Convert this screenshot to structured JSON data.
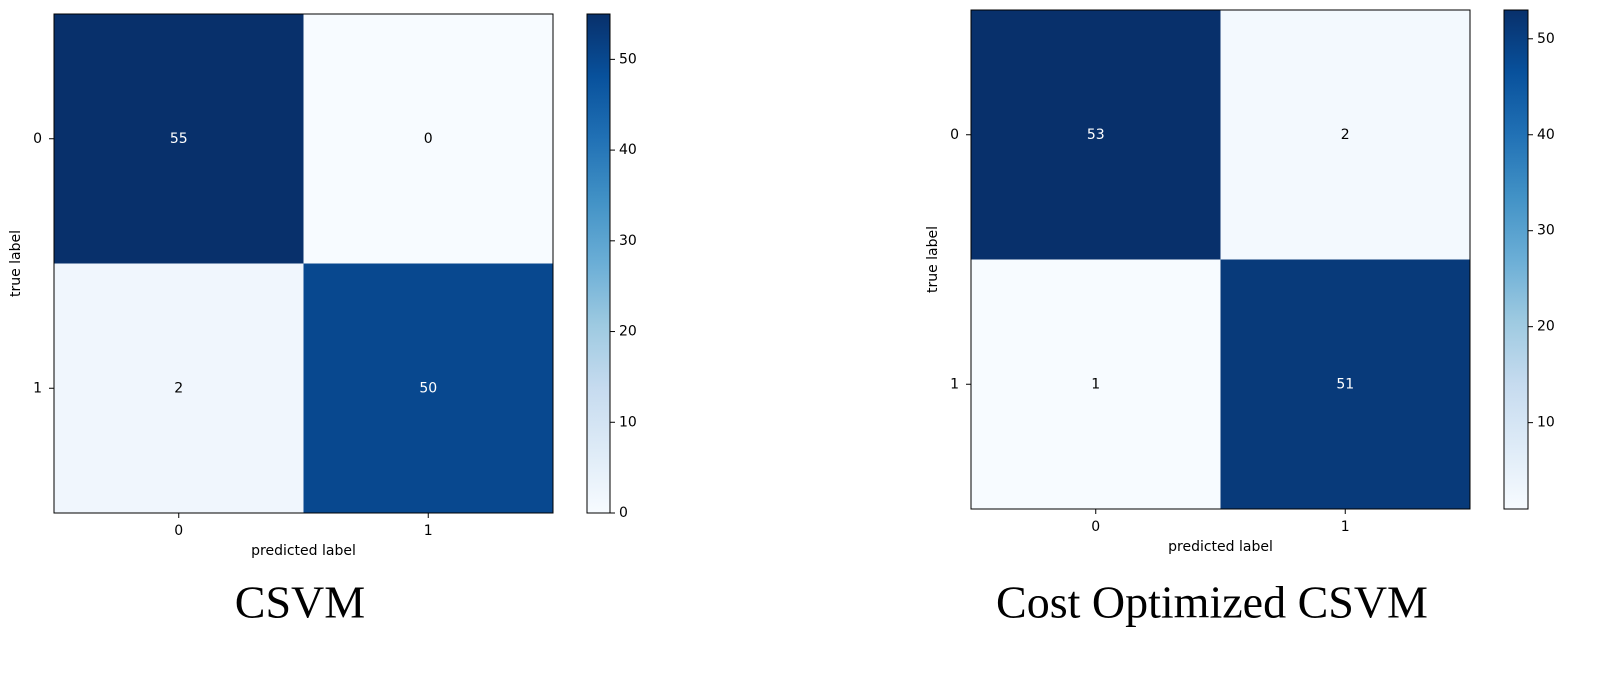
{
  "chart_data": [
    {
      "type": "heatmap",
      "title": "CSVM",
      "x_label": "predicted label",
      "y_label": "true label",
      "x_categories": [
        "0",
        "1"
      ],
      "y_categories": [
        "0",
        "1"
      ],
      "values": [
        [
          55,
          0
        ],
        [
          2,
          50
        ]
      ],
      "colormap": "Blues",
      "clim": [
        0,
        55
      ],
      "cticks": [
        0,
        10,
        20,
        30,
        40,
        50
      ]
    },
    {
      "type": "heatmap",
      "title": "Cost Optimized CSVM",
      "x_label": "predicted label",
      "y_label": "true label",
      "x_categories": [
        "0",
        "1"
      ],
      "y_categories": [
        "0",
        "1"
      ],
      "values": [
        [
          53,
          2
        ],
        [
          1,
          51
        ]
      ],
      "colormap": "Blues",
      "clim": [
        1,
        53
      ],
      "cticks": [
        10,
        20,
        30,
        40,
        50
      ]
    }
  ]
}
